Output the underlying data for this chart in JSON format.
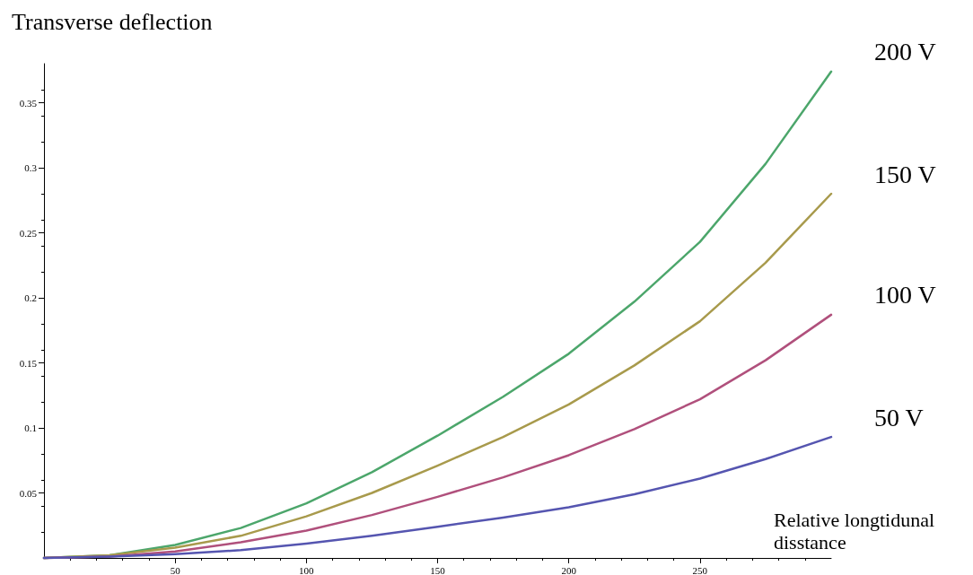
{
  "chart_data": {
    "type": "line",
    "ylabel": "Transverse deflection",
    "xlabel": "Relative longtidunal disstance",
    "x": [
      0,
      25,
      50,
      75,
      100,
      125,
      150,
      175,
      200,
      225,
      250,
      275,
      300
    ],
    "xlim": [
      0,
      300
    ],
    "xticks": [
      50,
      100,
      150,
      200,
      250
    ],
    "ylim": [
      0,
      0.38
    ],
    "yticks": [
      0.05,
      0.1,
      0.15,
      0.2,
      0.25,
      0.3,
      0.35
    ],
    "grid": false,
    "legend": false,
    "marker": "none",
    "line_style": "solid",
    "series": [
      {
        "name": "200 V",
        "color": "#4ca66b",
        "values": [
          0,
          0.002,
          0.01,
          0.023,
          0.042,
          0.066,
          0.094,
          0.124,
          0.157,
          0.197,
          0.243,
          0.303,
          0.374
        ]
      },
      {
        "name": "150 V",
        "color": "#a89a4c",
        "values": [
          0,
          0.002,
          0.008,
          0.017,
          0.032,
          0.05,
          0.071,
          0.093,
          0.118,
          0.148,
          0.182,
          0.227,
          0.28
        ]
      },
      {
        "name": "100 V",
        "color": "#b0507c",
        "values": [
          0,
          0.001,
          0.005,
          0.012,
          0.021,
          0.033,
          0.047,
          0.062,
          0.079,
          0.099,
          0.122,
          0.152,
          0.187
        ]
      },
      {
        "name": "50 V",
        "color": "#5555b0",
        "values": [
          0,
          0.001,
          0.003,
          0.006,
          0.011,
          0.017,
          0.024,
          0.031,
          0.039,
          0.049,
          0.061,
          0.076,
          0.093
        ]
      }
    ]
  }
}
